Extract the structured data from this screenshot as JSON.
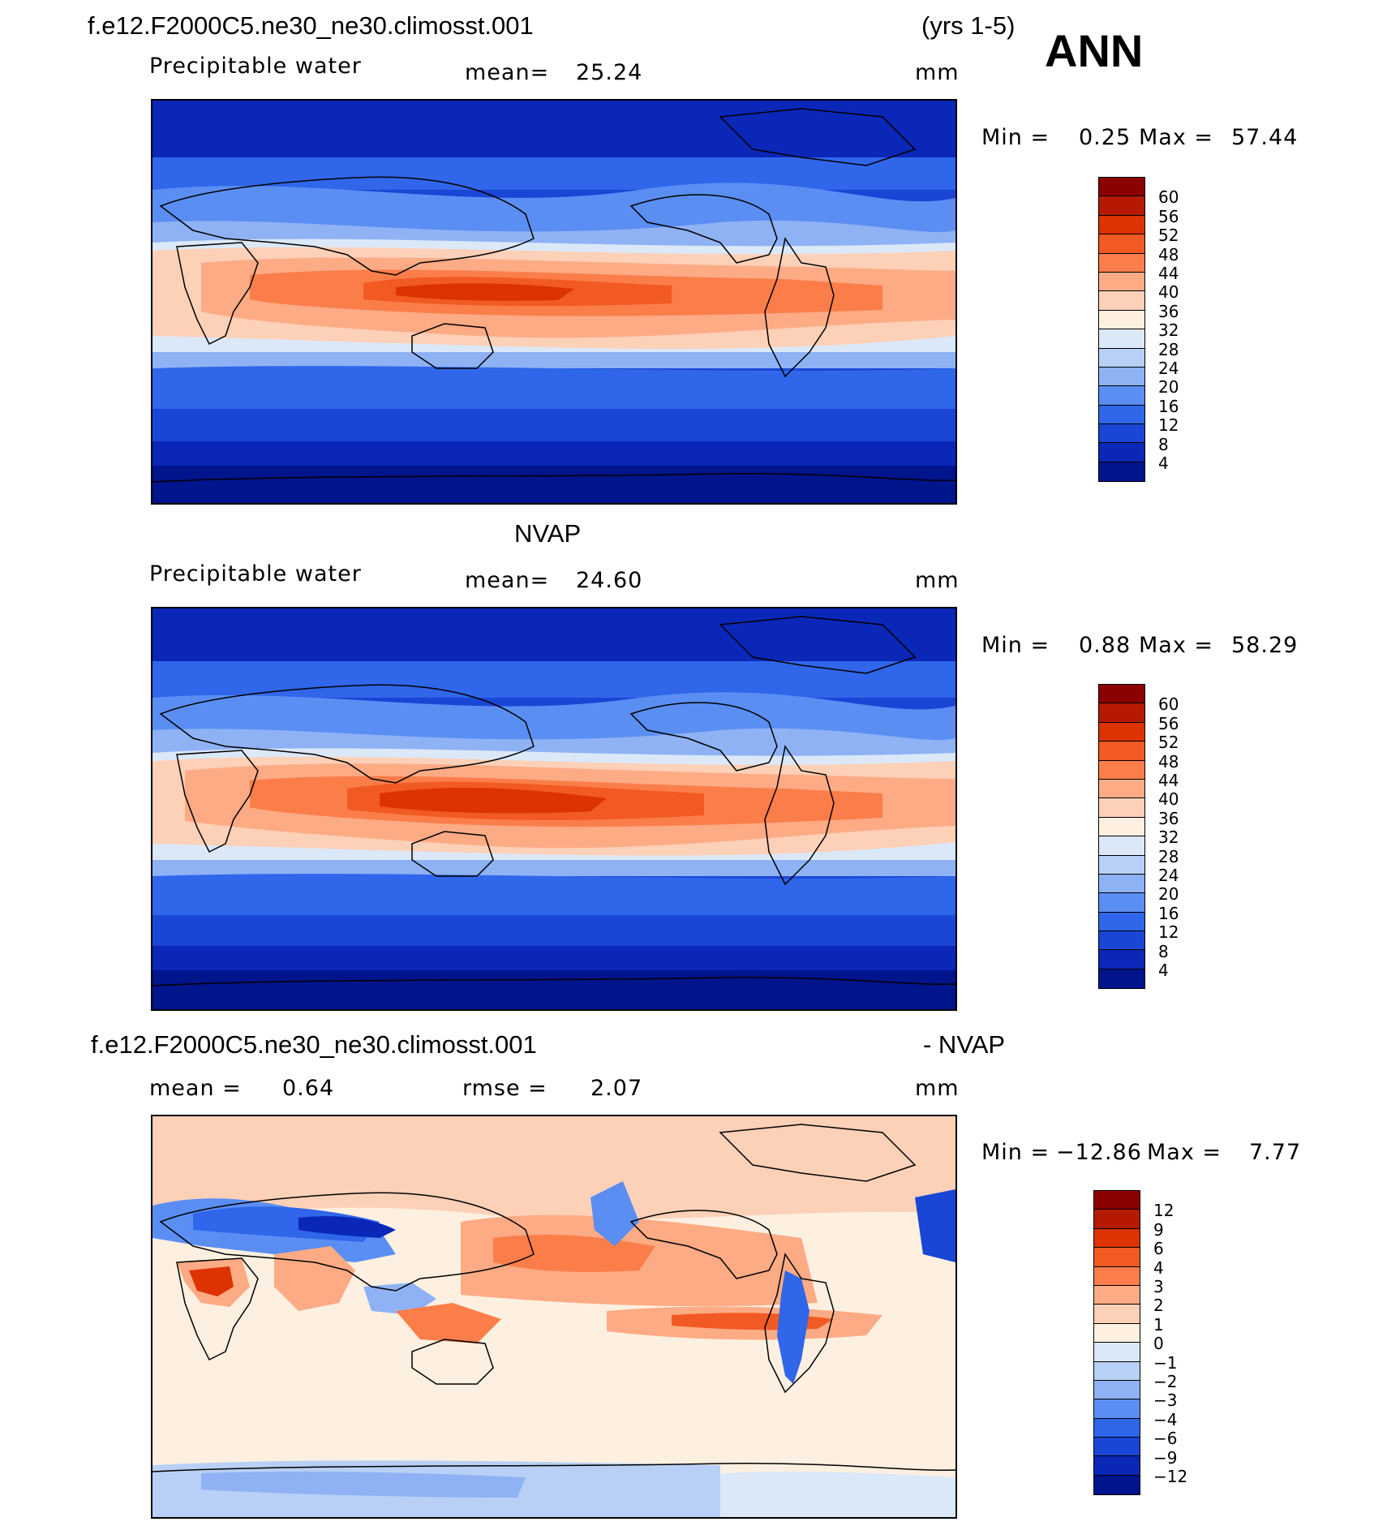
{
  "header": {
    "case_name": "f.e12.F2000C5.ne30_ne30.climosst.001",
    "years": "(yrs 1-5)",
    "season": "ANN"
  },
  "panels": [
    {
      "id": "model",
      "title": "",
      "variable": "Precipitable water",
      "stat_label": "mean=",
      "stat_value": "25.24",
      "units": "mm",
      "minmax_min_label": "Min =",
      "minmax_min": "0.25",
      "minmax_max_label": "Max =",
      "minmax_max": "57.44"
    },
    {
      "id": "obs",
      "title": "NVAP",
      "variable": "Precipitable water",
      "stat_label": "mean=",
      "stat_value": "24.60",
      "units": "mm",
      "minmax_min_label": "Min =",
      "minmax_min": "0.88",
      "minmax_max_label": "Max =",
      "minmax_max": "58.29"
    },
    {
      "id": "diff",
      "title_left": "f.e12.F2000C5.ne30_ne30.climosst.001",
      "title_right": "- NVAP",
      "stat_label": "mean =",
      "stat_value": "0.64",
      "stat2_label": "rmse =",
      "stat2_value": "2.07",
      "units": "mm",
      "minmax_min_label": "Min =",
      "minmax_min": "−12.86",
      "minmax_max_label": "Max =",
      "minmax_max": "7.77"
    }
  ],
  "colorbars": {
    "field_levels": [
      "60",
      "56",
      "52",
      "48",
      "44",
      "40",
      "36",
      "32",
      "28",
      "24",
      "20",
      "16",
      "12",
      "8",
      "4"
    ],
    "field_colors": [
      "#8b0000",
      "#b51a00",
      "#dc3300",
      "#f15a22",
      "#fb7e4a",
      "#fcab85",
      "#fdd0b8",
      "#fdf0e0",
      "#dbe8f8",
      "#b8d0f5",
      "#8fb2f5",
      "#5b8ef3",
      "#2f66ea",
      "#1a46d6",
      "#0a27b8",
      "#00148c"
    ],
    "diff_levels": [
      "12",
      "9",
      "6",
      "4",
      "3",
      "2",
      "1",
      "0",
      "−1",
      "−2",
      "−3",
      "−4",
      "−6",
      "−9",
      "−12"
    ],
    "diff_colors": [
      "#8b0000",
      "#b51a00",
      "#dc3300",
      "#f15a22",
      "#fb7e4a",
      "#fcab85",
      "#fdd0b8",
      "#fdf0e0",
      "#dbe8f8",
      "#b8d0f5",
      "#8fb2f5",
      "#5b8ef3",
      "#2f66ea",
      "#1a46d6",
      "#0a27b8",
      "#00148c"
    ]
  }
}
